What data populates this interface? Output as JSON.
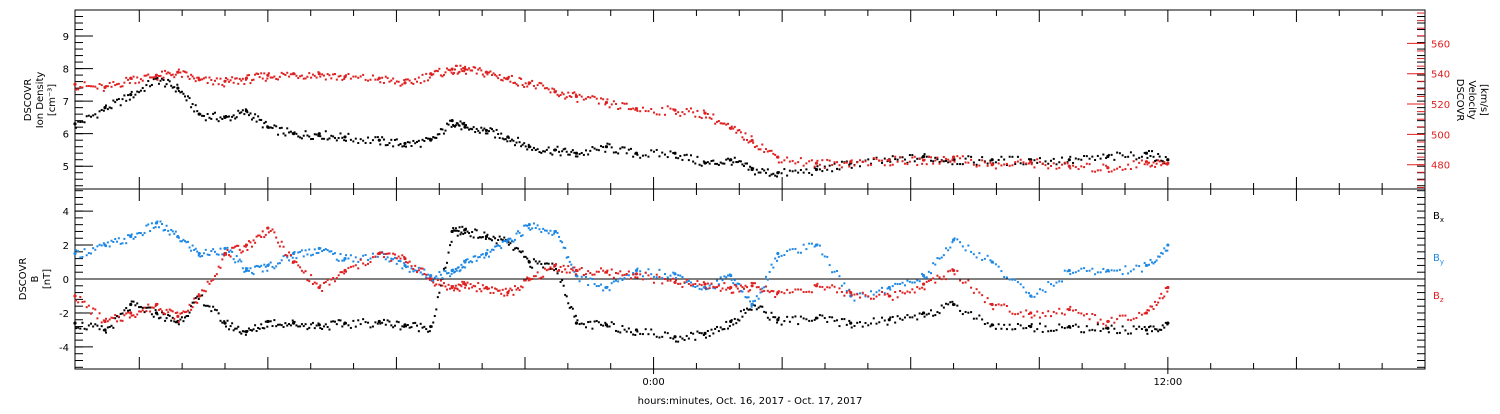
{
  "colors": {
    "density": "#000000",
    "velocity": "#e02020",
    "bx": "#000000",
    "by": "#1e88e5",
    "bz": "#e02020",
    "axis": "#000000"
  },
  "xlabel": "hours:minutes, Oct. 16, 2017 - Oct. 17, 2017",
  "x_tick_labels": [
    "0:00",
    "12:00"
  ],
  "chart_data": [
    {
      "type": "scatter",
      "panel": "top",
      "ylabel_left": [
        "DSCOVR",
        "Ion Density",
        "[cm⁻³]"
      ],
      "ylabel_right": [
        "DSCOVR",
        "Velocity",
        "[km/s]"
      ],
      "xlim": [
        -13.5,
        18.0
      ],
      "ylim_left": [
        4.3,
        9.8
      ],
      "ylim_right": [
        464,
        582
      ],
      "y_ticks_left": [
        5,
        6,
        7,
        8,
        9
      ],
      "y_ticks_right": [
        480,
        500,
        520,
        540,
        560
      ],
      "grid": false,
      "series": [
        {
          "axis": "left",
          "color_key": "density",
          "x": [
            -13.5,
            -12.8,
            -12.2,
            -11.6,
            -11.1,
            -10.6,
            -10.0,
            -9.5,
            -9.0,
            -8.4,
            -7.8,
            -7.2,
            -6.4,
            -5.8,
            -5.2,
            -4.7,
            -4.4,
            -3.9,
            -3.4,
            -2.9,
            -2.3,
            -1.8,
            -1.1,
            -0.4,
            0.5,
            1.2,
            1.8,
            2.3,
            2.9,
            3.8,
            4.6,
            5.5,
            6.3,
            7.0,
            7.9,
            8.8,
            9.7,
            10.6,
            11.5,
            12.0
          ],
          "values": [
            6.3,
            6.8,
            7.2,
            7.7,
            7.4,
            6.6,
            6.5,
            6.7,
            6.2,
            6.0,
            6.0,
            5.9,
            5.8,
            5.7,
            5.8,
            6.4,
            6.2,
            6.1,
            5.9,
            5.6,
            5.5,
            5.4,
            5.6,
            5.4,
            5.4,
            5.1,
            5.2,
            4.9,
            4.8,
            4.9,
            5.1,
            5.2,
            5.3,
            5.2,
            5.2,
            5.2,
            5.2,
            5.3,
            5.4,
            5.2
          ]
        },
        {
          "axis": "right",
          "color_key": "velocity",
          "x": [
            -13.5,
            -12.8,
            -12.2,
            -11.6,
            -11.1,
            -10.6,
            -10.0,
            -9.5,
            -9.0,
            -8.4,
            -7.8,
            -7.2,
            -6.4,
            -5.8,
            -5.2,
            -4.7,
            -4.4,
            -3.9,
            -3.4,
            -2.9,
            -2.3,
            -1.8,
            -1.1,
            -0.4,
            0.5,
            1.2,
            1.8,
            2.3,
            2.9,
            3.8,
            4.6,
            5.5,
            6.3,
            7.0,
            7.9,
            8.8,
            9.7,
            10.6,
            11.5,
            12.0
          ],
          "values": [
            533,
            531,
            537,
            539,
            541,
            536,
            535,
            537,
            539,
            540,
            540,
            538,
            537,
            534,
            540,
            543,
            543,
            541,
            537,
            534,
            528,
            525,
            521,
            517,
            516,
            514,
            504,
            496,
            485,
            481,
            482,
            483,
            483,
            485,
            480,
            482,
            479,
            478,
            482,
            481
          ]
        }
      ]
    },
    {
      "type": "scatter",
      "panel": "bottom",
      "ylabel_left": [
        "DSCOVR",
        "B",
        "[nT]"
      ],
      "xlim": [
        -13.5,
        18.0
      ],
      "ylim": [
        -5.3,
        5.3
      ],
      "y_ticks": [
        -4,
        -2,
        0,
        2,
        4
      ],
      "zero_line": true,
      "grid": false,
      "series": [
        {
          "name": "B",
          "subscript": "x",
          "color_key": "bx",
          "x": [
            -13.5,
            -12.8,
            -12.2,
            -11.6,
            -11.1,
            -10.6,
            -10.0,
            -9.5,
            -9.0,
            -8.4,
            -7.8,
            -7.2,
            -6.4,
            -5.8,
            -5.2,
            -4.7,
            -4.4,
            -3.9,
            -3.4,
            -2.9,
            -2.3,
            -1.8,
            -1.1,
            -0.4,
            0.5,
            1.2,
            1.8,
            2.3,
            2.9,
            3.8,
            4.6,
            5.5,
            6.3,
            7.0,
            7.9,
            8.8,
            9.7,
            10.6,
            11.5,
            12.0
          ],
          "values": [
            -2.6,
            -3.0,
            -1.5,
            -2.0,
            -2.5,
            -1.0,
            -2.6,
            -3.1,
            -2.5,
            -2.6,
            -2.7,
            -2.6,
            -2.5,
            -2.7,
            -2.8,
            2.8,
            2.9,
            2.5,
            2.2,
            1.0,
            0.8,
            -2.6,
            -2.7,
            -3.0,
            -3.4,
            -3.2,
            -2.5,
            -1.5,
            -2.4,
            -2.3,
            -2.6,
            -2.4,
            -2.0,
            -1.5,
            -2.7,
            -2.8,
            -2.8,
            -2.9,
            -3.0,
            -2.6
          ]
        },
        {
          "name": "B",
          "subscript": "y",
          "color_key": "by",
          "x": [
            -13.5,
            -12.8,
            -12.2,
            -11.6,
            -11.1,
            -10.6,
            -10.0,
            -9.5,
            -9.0,
            -8.4,
            -7.8,
            -7.2,
            -6.4,
            -5.8,
            -5.2,
            -4.7,
            -4.4,
            -3.9,
            -3.4,
            -2.9,
            -2.3,
            -1.8,
            -1.1,
            -0.4,
            0.5,
            1.2,
            1.8,
            2.3,
            2.9,
            3.8,
            4.6,
            5.5,
            6.3,
            7.0,
            7.9,
            8.8,
            9.7,
            10.6,
            11.5,
            12.0
          ],
          "values": [
            1.5,
            2.0,
            2.5,
            3.3,
            2.5,
            1.5,
            1.8,
            0.5,
            0.8,
            1.5,
            1.8,
            1.2,
            1.5,
            0.8,
            0.2,
            0.5,
            1.0,
            1.5,
            2.3,
            3.2,
            2.8,
            0.2,
            -0.5,
            0.5,
            0.3,
            -0.5,
            0.2,
            -1.5,
            1.5,
            2.0,
            -1.0,
            -0.5,
            0.2,
            2.3,
            1.0,
            -1.0,
            0.5,
            0.5,
            0.8,
            2.0
          ]
        },
        {
          "name": "B",
          "subscript": "z",
          "color_key": "bz",
          "x": [
            -13.5,
            -12.8,
            -12.2,
            -11.6,
            -11.1,
            -10.6,
            -10.0,
            -9.5,
            -9.0,
            -8.4,
            -7.8,
            -7.2,
            -6.4,
            -5.8,
            -5.2,
            -4.7,
            -4.4,
            -3.9,
            -3.4,
            -2.9,
            -2.3,
            -1.8,
            -1.1,
            -0.4,
            0.5,
            1.2,
            1.8,
            2.3,
            2.9,
            3.8,
            4.6,
            5.5,
            6.3,
            7.0,
            7.9,
            8.8,
            9.7,
            10.6,
            11.5,
            12.0
          ],
          "values": [
            -1.0,
            -2.5,
            -2.0,
            -1.5,
            -2.2,
            -1.0,
            1.5,
            2.0,
            3.0,
            1.0,
            -0.5,
            0.5,
            1.5,
            1.2,
            0.0,
            -0.5,
            -0.3,
            -0.5,
            -0.8,
            0.0,
            0.8,
            0.5,
            0.4,
            0.3,
            -0.2,
            -0.3,
            -0.5,
            -0.4,
            -0.8,
            -0.4,
            -0.8,
            -1.0,
            -0.3,
            0.5,
            -1.5,
            -2.0,
            -1.8,
            -2.5,
            -2.0,
            -0.5
          ]
        }
      ]
    }
  ]
}
